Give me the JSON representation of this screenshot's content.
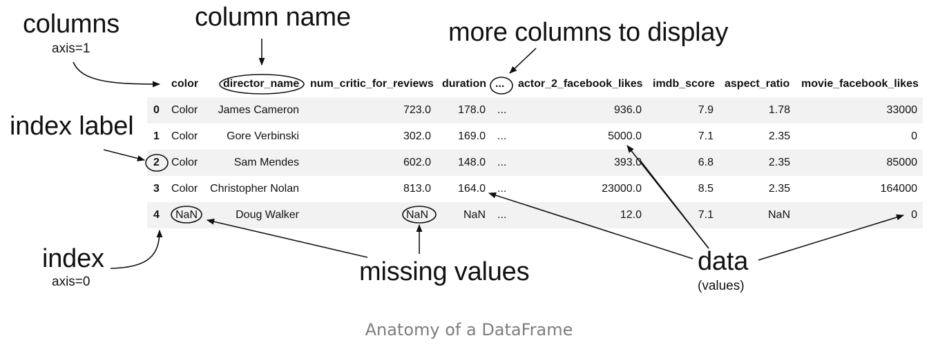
{
  "annotations": {
    "columns": "columns",
    "columns_axis": "axis=1",
    "column_name": "column name",
    "more_columns": "more columns to display",
    "index_label": "index label",
    "index": "index",
    "index_axis": "axis=0",
    "missing_values": "missing values",
    "data": "data",
    "data_sub": "(values)"
  },
  "table": {
    "headers": [
      "color",
      "director_name",
      "num_critic_for_reviews",
      "duration",
      "...",
      "actor_2_facebook_likes",
      "imdb_score",
      "aspect_ratio",
      "movie_facebook_likes"
    ],
    "rows": [
      {
        "index": "0",
        "cells": [
          "Color",
          "James Cameron",
          "723.0",
          "178.0",
          "...",
          "936.0",
          "7.9",
          "1.78",
          "33000"
        ]
      },
      {
        "index": "1",
        "cells": [
          "Color",
          "Gore Verbinski",
          "302.0",
          "169.0",
          "...",
          "5000.0",
          "7.1",
          "2.35",
          "0"
        ]
      },
      {
        "index": "2",
        "cells": [
          "Color",
          "Sam Mendes",
          "602.0",
          "148.0",
          "...",
          "393.0",
          "6.8",
          "2.35",
          "85000"
        ]
      },
      {
        "index": "3",
        "cells": [
          "Color",
          "Christopher Nolan",
          "813.0",
          "164.0",
          "...",
          "23000.0",
          "8.5",
          "2.35",
          "164000"
        ]
      },
      {
        "index": "4",
        "cells": [
          "NaN",
          "Doug Walker",
          "NaN",
          "NaN",
          "...",
          "12.0",
          "7.1",
          "NaN",
          "0"
        ]
      }
    ]
  },
  "caption": "Anatomy of a DataFrame"
}
